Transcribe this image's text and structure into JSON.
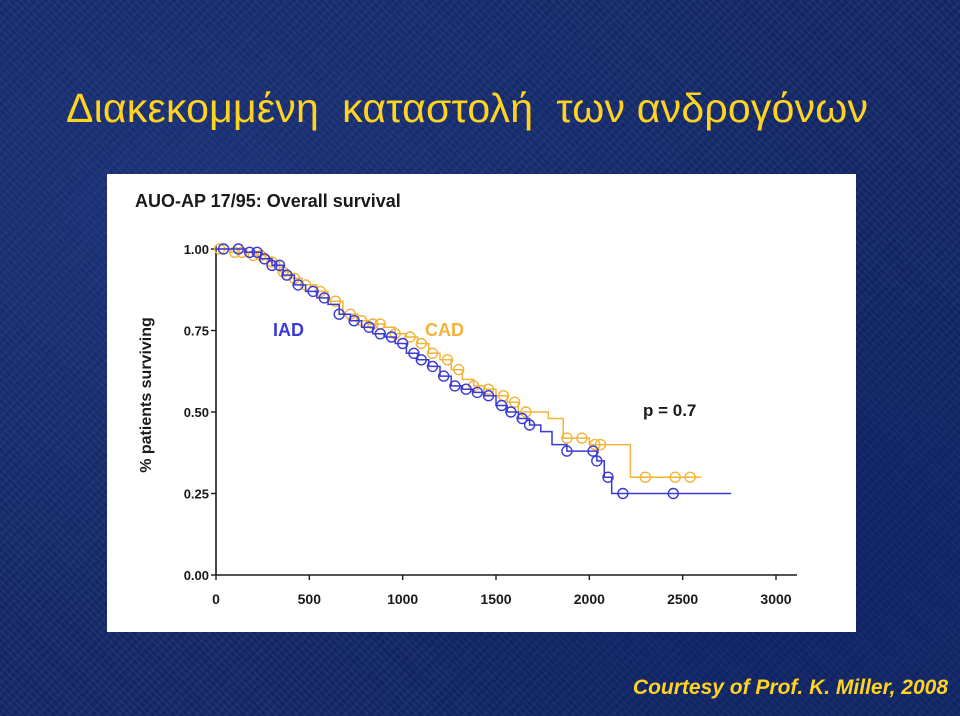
{
  "slide": {
    "title": "Διακεκομμένη  καταστολή  των ανδρογόνων",
    "credit": "Courtesy of Prof. K. Miller, 2008"
  },
  "colors": {
    "title": "#ffd320",
    "iad": "#3a3ad2",
    "cad": "#f2b33a",
    "axis_text": "#1a1a1a"
  },
  "chart_data": {
    "type": "line",
    "title": "AUO-AP 17/95: Overall survival",
    "xlabel": "",
    "ylabel": "% patients surviving",
    "xlim": [
      0,
      3000
    ],
    "ylim": [
      0,
      1
    ],
    "xticks": [
      0,
      500,
      1000,
      1500,
      2000,
      2500,
      3000
    ],
    "xtick_labels": [
      "0",
      "500",
      "1000",
      "1500",
      "2000",
      "2500",
      "3000"
    ],
    "yticks": [
      0,
      0.25,
      0.5,
      0.75,
      1
    ],
    "ytick_labels": [
      "0.00",
      "0.25",
      "0.50",
      "0.75",
      "1.00"
    ],
    "grid": false,
    "annotation": "p = 0.7",
    "series": [
      {
        "name": "IAD",
        "color_key": "iad",
        "x": [
          0,
          60,
          160,
          240,
          300,
          360,
          420,
          480,
          540,
          600,
          660,
          720,
          780,
          840,
          900,
          960,
          1020,
          1080,
          1140,
          1200,
          1260,
          1320,
          1380,
          1440,
          1500,
          1560,
          1620,
          1680,
          1740,
          1800,
          1880,
          1960,
          2040,
          2080,
          2120,
          2200,
          2460,
          2760
        ],
        "y": [
          1.0,
          1.0,
          0.99,
          0.97,
          0.95,
          0.92,
          0.89,
          0.87,
          0.85,
          0.83,
          0.8,
          0.78,
          0.76,
          0.74,
          0.73,
          0.71,
          0.68,
          0.66,
          0.64,
          0.61,
          0.58,
          0.57,
          0.56,
          0.55,
          0.52,
          0.5,
          0.48,
          0.46,
          0.44,
          0.4,
          0.38,
          0.38,
          0.35,
          0.3,
          0.25,
          0.25,
          0.25,
          0.25
        ],
        "censored_x": [
          40,
          120,
          180,
          220,
          260,
          300,
          340,
          380,
          440,
          520,
          580,
          660,
          740,
          820,
          880,
          940,
          1000,
          1060,
          1100,
          1160,
          1220,
          1280,
          1340,
          1400,
          1460,
          1530,
          1580,
          1640,
          1680,
          1880,
          2020,
          2040,
          2100,
          2180,
          2450
        ]
      },
      {
        "name": "CAD",
        "color_key": "cad",
        "x": [
          0,
          80,
          200,
          280,
          340,
          400,
          460,
          540,
          600,
          680,
          760,
          820,
          900,
          960,
          1020,
          1080,
          1140,
          1200,
          1260,
          1320,
          1380,
          1440,
          1500,
          1560,
          1620,
          1700,
          1780,
          1860,
          2000,
          2100,
          2200,
          2220,
          2600
        ],
        "y": [
          1.0,
          0.99,
          0.98,
          0.96,
          0.93,
          0.91,
          0.89,
          0.87,
          0.84,
          0.8,
          0.78,
          0.77,
          0.76,
          0.74,
          0.73,
          0.71,
          0.68,
          0.66,
          0.63,
          0.6,
          0.58,
          0.57,
          0.55,
          0.53,
          0.5,
          0.5,
          0.48,
          0.42,
          0.4,
          0.4,
          0.4,
          0.3,
          0.3
        ],
        "censored_x": [
          20,
          100,
          140,
          200,
          240,
          300,
          360,
          420,
          480,
          560,
          640,
          720,
          780,
          840,
          880,
          960,
          1040,
          1100,
          1160,
          1240,
          1300,
          1380,
          1460,
          1540,
          1600,
          1660,
          1880,
          1960,
          2030,
          2060,
          2300,
          2460,
          2540
        ]
      }
    ]
  }
}
